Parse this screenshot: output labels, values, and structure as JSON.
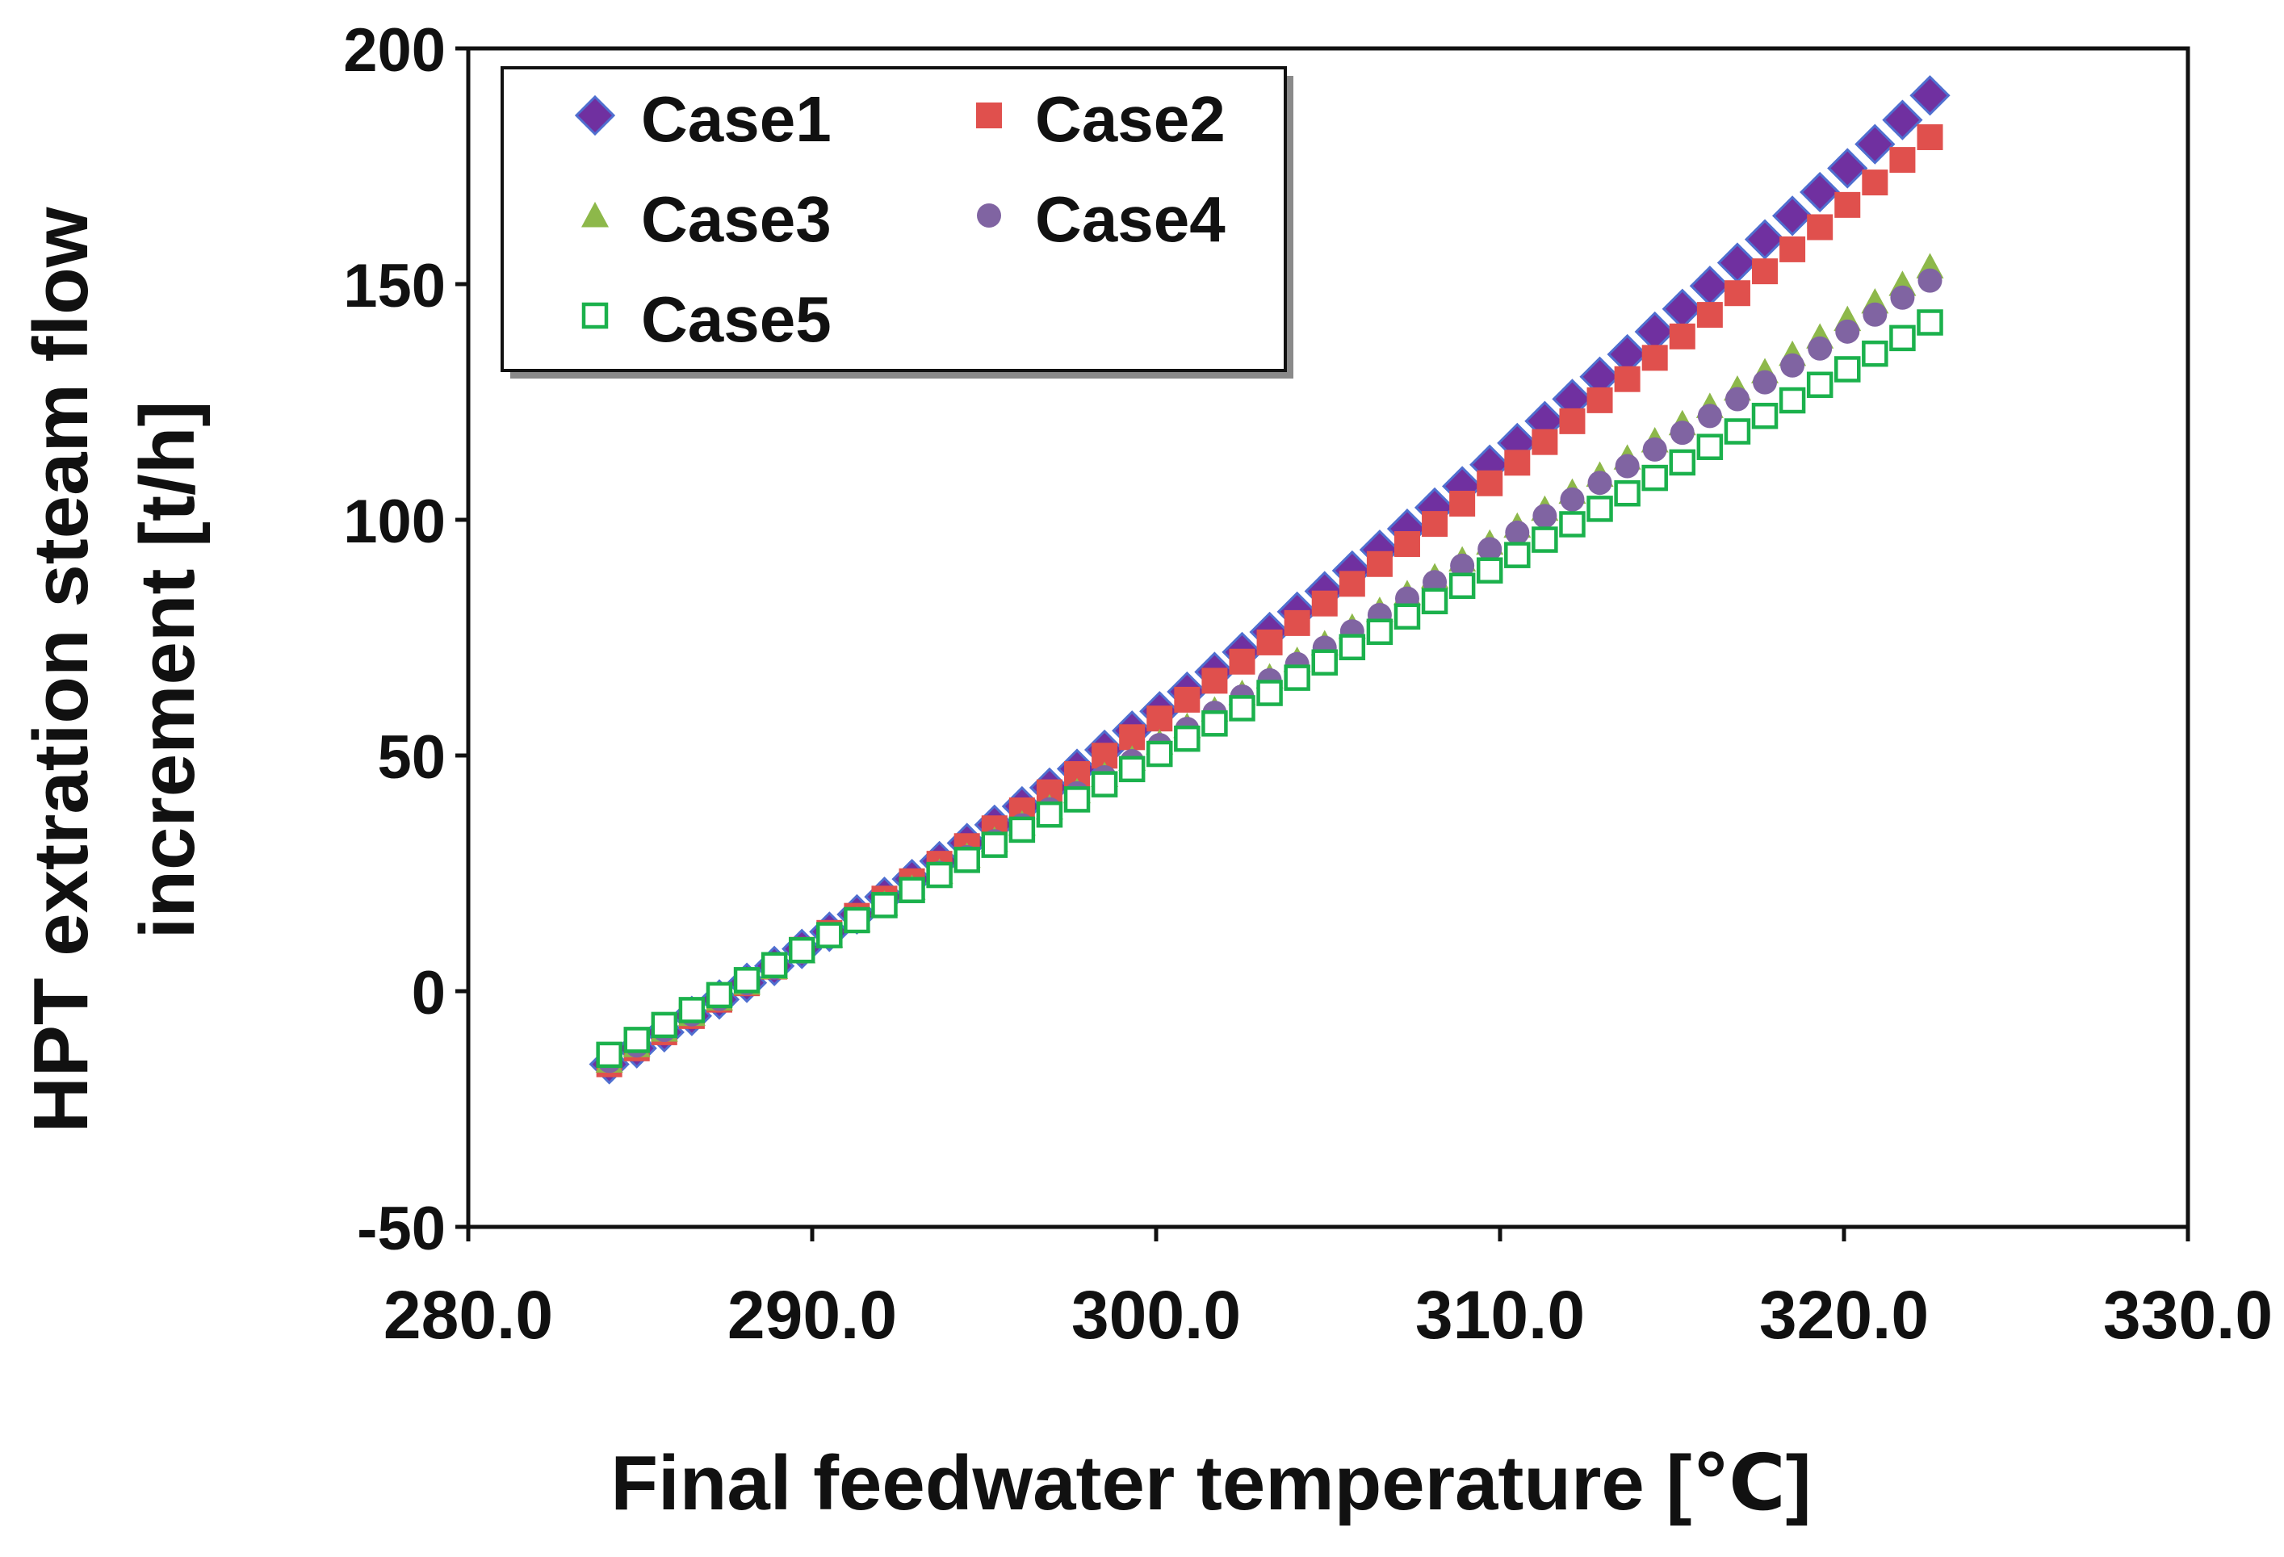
{
  "chart_data": {
    "type": "scatter",
    "title": "",
    "xlabel": "Final feedwater temperature [℃]",
    "ylabel_line1": "HPT extration steam flow",
    "ylabel_line2": "increment [t/h]",
    "xlim": [
      280,
      330
    ],
    "ylim": [
      -50,
      200
    ],
    "xticks": [
      280,
      290,
      300,
      310,
      320,
      330
    ],
    "xtick_labels": [
      "280.0",
      "290.0",
      "300.0",
      "310.0",
      "320.0",
      "330.0"
    ],
    "yticks": [
      -50,
      0,
      50,
      100,
      150,
      200
    ],
    "ytick_labels": [
      "-50",
      "0",
      "50",
      "100",
      "150",
      "200"
    ],
    "grid": false,
    "legend_position": "top-left",
    "x_start": 284.1,
    "x_step": 0.8,
    "n_points": 49,
    "series": [
      {
        "name": "Case1",
        "marker": "diamond",
        "color": "#7030A0",
        "edge": "#4F6FD0",
        "y_start": -15.5,
        "slope": 4.2,
        "curve": 0.03
      },
      {
        "name": "Case2",
        "marker": "square",
        "color": "#E0504D",
        "edge": "#E0504D",
        "y_start": -15.5,
        "slope": 4.2,
        "curve": 0.024
      },
      {
        "name": "Case3",
        "marker": "triangle",
        "color": "#8DB84A",
        "edge": "#8DB84A",
        "y_start": -14.8,
        "slope": 4.1,
        "curve": 0.0075
      },
      {
        "name": "Case4",
        "marker": "circle",
        "color": "#8064A2",
        "edge": "#8064A2",
        "y_start": -14.8,
        "slope": 4.1,
        "curve": 0.0055
      },
      {
        "name": "Case5",
        "marker": "open-square",
        "color": "#1BB14C",
        "edge": "#1BB14C",
        "y_start": -13.5,
        "slope": 3.95,
        "curve": 0.0025
      }
    ]
  }
}
